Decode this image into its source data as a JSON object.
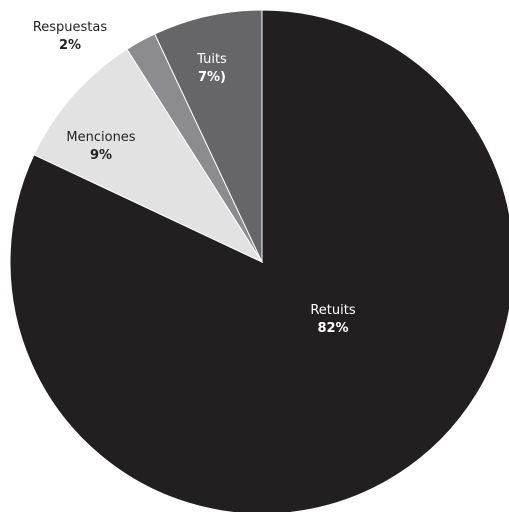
{
  "chart_data": {
    "type": "pie",
    "title": "",
    "slices": [
      {
        "name": "Retuits",
        "value": 82,
        "display": "82%",
        "color": "#221f20",
        "label_color": "#ffffff",
        "label_outside": false
      },
      {
        "name": "Menciones",
        "value": 9,
        "display": "9%",
        "color": "#e2e2e3",
        "label_color": "#231f20",
        "label_outside": false
      },
      {
        "name": "Respuestas",
        "value": 2,
        "display": "2%",
        "color": "#8c8c8e",
        "label_color": "#231f20",
        "label_outside": true
      },
      {
        "name": "Tuits",
        "value": 7,
        "display": "7%)",
        "color": "#666668",
        "label_color": "#ffffff",
        "label_outside": false
      }
    ],
    "start": "12 o'clock",
    "direction": "clockwise",
    "legend": "none"
  }
}
